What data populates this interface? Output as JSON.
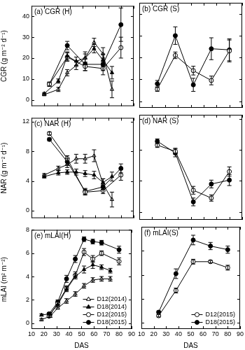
{
  "chart_data": [
    {
      "type": "line",
      "title": "(a) CGR (H)",
      "y_label": "CGR (g m⁻² d⁻¹)",
      "xlim": [
        10,
        90
      ],
      "xticks": [
        10,
        20,
        30,
        40,
        50,
        60,
        70,
        80,
        90
      ],
      "ylim": [
        -3,
        45
      ],
      "yticks": [
        0,
        10,
        20,
        30,
        40
      ],
      "grid": false,
      "tick_labels": "y",
      "series": [
        {
          "name": "D12(2014)",
          "color": "#000000",
          "marker": "triangle-open",
          "line_style": "solid",
          "x": [
            20,
            31,
            38,
            45,
            52,
            59,
            66,
            73
          ],
          "values": [
            2.5,
            5,
            13,
            16.5,
            20,
            27.5,
            22,
            5
          ],
          "errors": [
            0.5,
            1,
            1.5,
            2,
            2,
            2,
            3,
            4
          ]
        },
        {
          "name": "D18(2014)",
          "color": "#000000",
          "marker": "triangle",
          "line_style": "solid",
          "x": [
            20,
            31,
            38,
            45,
            52,
            59,
            66,
            73
          ],
          "values": [
            3,
            9,
            21,
            18.5,
            20,
            24.5,
            19,
            13
          ],
          "errors": [
            0.5,
            1,
            2,
            2,
            3,
            2,
            3,
            3
          ]
        },
        {
          "name": "D12(2015)",
          "color": "#000000",
          "marker": "circle-open",
          "line_style": "solid",
          "x": [
            24,
            38,
            52,
            66,
            80
          ],
          "values": [
            7.5,
            20.5,
            16,
            15,
            25
          ],
          "errors": [
            1,
            2,
            2,
            3,
            5
          ]
        },
        {
          "name": "D18(2015)",
          "color": "#000000",
          "marker": "circle",
          "line_style": "solid",
          "x": [
            24,
            38,
            52,
            66,
            80
          ],
          "values": [
            7.5,
            26,
            17,
            17,
            36
          ],
          "errors": [
            1,
            2,
            3,
            3,
            8
          ]
        }
      ]
    },
    {
      "type": "line",
      "title": "(b) CGR (S)",
      "xlim": [
        10,
        90
      ],
      "xticks": [
        10,
        20,
        30,
        40,
        50,
        60,
        70,
        80,
        90
      ],
      "ylim": [
        -3,
        45
      ],
      "yticks": [
        0,
        10,
        20,
        30,
        40
      ],
      "grid": false,
      "tick_labels": false,
      "series": [
        {
          "name": "D12(2015)",
          "color": "#000000",
          "marker": "circle-open",
          "line_style": "solid",
          "x": [
            24,
            38,
            52,
            66,
            80
          ],
          "values": [
            5.5,
            21,
            14,
            9.5,
            23
          ],
          "errors": [
            1,
            1.5,
            2,
            2,
            5
          ]
        },
        {
          "name": "D18(2015)",
          "color": "#000000",
          "marker": "circle",
          "line_style": "solid",
          "x": [
            24,
            38,
            52,
            66,
            80
          ],
          "values": [
            8,
            30,
            7.5,
            24,
            23.5
          ],
          "errors": [
            1.5,
            4,
            3,
            5,
            5
          ]
        }
      ]
    },
    {
      "type": "line",
      "title": "(c) NAR (H)",
      "y_label": "NAR (g m⁻² d⁻¹)",
      "xlim": [
        10,
        90
      ],
      "xticks": [
        10,
        20,
        30,
        40,
        50,
        60,
        70,
        80,
        90
      ],
      "ylim": [
        -1,
        12.5
      ],
      "yticks": [
        0,
        4,
        8,
        12
      ],
      "grid": false,
      "tick_labels": "y",
      "series": [
        {
          "name": "D12(2014)",
          "color": "#000000",
          "marker": "triangle-open",
          "line_style": "solid",
          "x": [
            20,
            31,
            38,
            45,
            52,
            59,
            66,
            73
          ],
          "values": [
            4.8,
            5.7,
            6.2,
            7.0,
            7.0,
            7.4,
            3.6,
            1.5
          ],
          "errors": [
            0.2,
            0.3,
            0.4,
            0.6,
            0.6,
            0.8,
            0.7,
            1.0
          ]
        },
        {
          "name": "D18(2014)",
          "color": "#000000",
          "marker": "triangle",
          "line_style": "solid",
          "x": [
            20,
            31,
            38,
            45,
            52,
            59,
            66,
            73
          ],
          "values": [
            4.6,
            5.1,
            5.2,
            5.2,
            5.0,
            4.8,
            3.8,
            4.6
          ],
          "errors": [
            0.2,
            0.3,
            0.3,
            0.4,
            0.4,
            0.5,
            0.5,
            0.6
          ]
        },
        {
          "name": "D12(2015)",
          "color": "#000000",
          "marker": "circle-open",
          "line_style": "solid",
          "x": [
            24,
            38,
            52,
            66,
            80
          ],
          "values": [
            10.4,
            7.0,
            2.5,
            2.7,
            4.8
          ],
          "errors": [
            0.2,
            0.4,
            0.4,
            0.4,
            0.7
          ]
        },
        {
          "name": "D18(2015)",
          "color": "#000000",
          "marker": "circle",
          "line_style": "solid",
          "x": [
            24,
            38,
            52,
            66,
            80
          ],
          "values": [
            9.6,
            6.6,
            2.6,
            3.2,
            5.7
          ],
          "errors": [
            0.2,
            0.4,
            0.4,
            0.4,
            0.6
          ]
        }
      ]
    },
    {
      "type": "line",
      "title": "(d) NAR (S)",
      "xlim": [
        10,
        90
      ],
      "xticks": [
        10,
        20,
        30,
        40,
        50,
        60,
        70,
        80,
        90
      ],
      "ylim": [
        -1,
        12.5
      ],
      "yticks": [
        0,
        4,
        8,
        12
      ],
      "grid": false,
      "tick_labels": false,
      "series": [
        {
          "name": "D12(2015)",
          "color": "#000000",
          "marker": "circle-open",
          "line_style": "solid",
          "x": [
            24,
            38,
            52,
            66,
            80
          ],
          "values": [
            8.6,
            7.8,
            2.8,
            1.8,
            5.2
          ],
          "errors": [
            0.3,
            0.4,
            0.5,
            0.4,
            0.6
          ]
        },
        {
          "name": "D18(2015)",
          "color": "#000000",
          "marker": "circle",
          "line_style": "solid",
          "x": [
            24,
            38,
            52,
            66,
            80
          ],
          "values": [
            9.1,
            7.6,
            1.3,
            3.6,
            4.1
          ],
          "errors": [
            0.3,
            0.5,
            0.5,
            0.5,
            0.7
          ]
        }
      ]
    },
    {
      "type": "line",
      "title": "(e) mLAI(H)",
      "x_label": "DAS",
      "y_label": "mLAI (m² m⁻²)",
      "xlim": [
        10,
        90
      ],
      "xticks": [
        10,
        20,
        30,
        40,
        50,
        60,
        70,
        80,
        90
      ],
      "ylim": [
        -0.5,
        8
      ],
      "yticks": [
        0,
        2,
        4,
        6,
        8
      ],
      "grid": false,
      "legend": "lower right",
      "series": [
        {
          "name": "D12(2014)",
          "color": "#000000",
          "marker": "triangle-open",
          "line_style": "solid",
          "x": [
            18,
            25,
            31,
            38,
            45,
            52,
            59,
            66,
            73
          ],
          "values": [
            0.3,
            0.6,
            1.3,
            1.9,
            2.5,
            3.2,
            3.7,
            3.8,
            3.8
          ],
          "errors": [
            0.1,
            0.1,
            0.1,
            0.2,
            0.2,
            0.2,
            0.2,
            0.2,
            0.2
          ]
        },
        {
          "name": "D18(2014)",
          "color": "#000000",
          "marker": "triangle",
          "line_style": "solid",
          "x": [
            18,
            25,
            31,
            38,
            45,
            52,
            59,
            66,
            73
          ],
          "values": [
            0.7,
            0.8,
            1.6,
            2.9,
            4.0,
            4.6,
            5.0,
            4.8,
            4.5
          ],
          "errors": [
            0.1,
            0.1,
            0.2,
            0.2,
            0.2,
            0.3,
            0.3,
            0.2,
            0.2
          ]
        },
        {
          "name": "D12(2015)",
          "color": "#000000",
          "marker": "circle-open",
          "line_style": "solid",
          "x": [
            24,
            31,
            38,
            45,
            52,
            59,
            66,
            80
          ],
          "values": [
            0.6,
            1.7,
            3.0,
            4.1,
            6.1,
            5.5,
            6.0,
            5.3
          ],
          "errors": [
            0.1,
            0.2,
            0.2,
            0.3,
            0.3,
            0.3,
            0.2,
            0.3
          ]
        },
        {
          "name": "D18(2015)",
          "color": "#000000",
          "marker": "circle",
          "line_style": "solid",
          "x": [
            24,
            31,
            38,
            45,
            52,
            59,
            66,
            80
          ],
          "values": [
            0.8,
            1.8,
            3.8,
            5.5,
            7.2,
            7.0,
            6.9,
            6.3
          ],
          "errors": [
            0.1,
            0.2,
            0.3,
            0.3,
            0.2,
            0.2,
            0.2,
            0.3
          ]
        }
      ]
    },
    {
      "type": "line",
      "title": "(f) mLAI(S)",
      "x_label": "DAS",
      "xlim": [
        10,
        90
      ],
      "xticks": [
        10,
        20,
        30,
        40,
        50,
        60,
        70,
        80,
        90
      ],
      "ylim": [
        -0.5,
        8
      ],
      "yticks": [
        0,
        2,
        4,
        6,
        8
      ],
      "grid": false,
      "tick_labels": "x",
      "legend": "lower right",
      "series": [
        {
          "name": "D12(2015)",
          "color": "#000000",
          "marker": "circle-open",
          "line_style": "solid",
          "x": [
            24,
            38,
            52,
            66,
            80
          ],
          "values": [
            0.6,
            2.7,
            5.1,
            5.1,
            4.6
          ],
          "errors": [
            0.1,
            0.2,
            0.2,
            0.1,
            0.2
          ]
        },
        {
          "name": "D18(2015)",
          "color": "#000000",
          "marker": "circle",
          "line_style": "solid",
          "x": [
            24,
            38,
            52,
            66,
            80
          ],
          "values": [
            0.9,
            4.1,
            6.9,
            6.4,
            6.1
          ],
          "errors": [
            0.1,
            0.4,
            0.4,
            0.3,
            0.3
          ]
        }
      ]
    }
  ]
}
